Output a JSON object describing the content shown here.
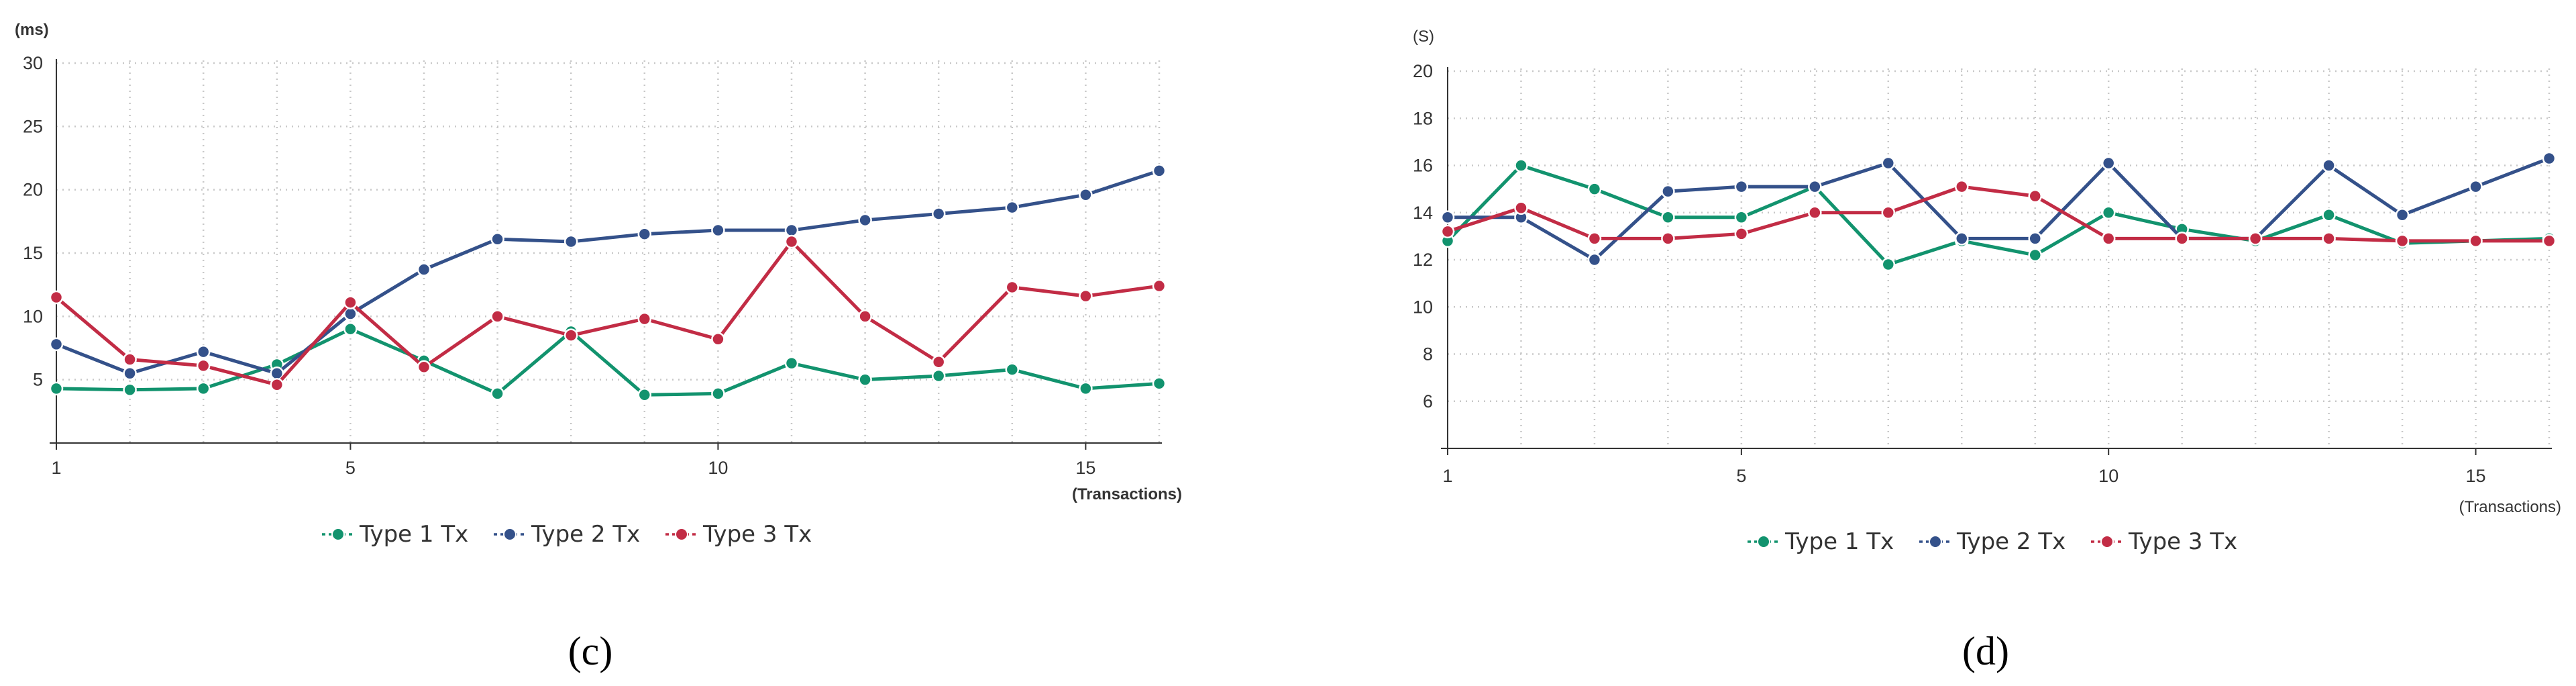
{
  "colors": {
    "series1": "#12936e",
    "series2": "#34518a",
    "series3": "#c22c45",
    "grid": "#c8c8c8",
    "axis": "#333333"
  },
  "chart_data": [
    {
      "panel": "c",
      "type": "line",
      "caption": "(c)",
      "ylabel": "(ms)",
      "xlabel": "(Transactions)",
      "xlim": [
        1,
        16
      ],
      "ylim": [
        0,
        30
      ],
      "xticks": [
        1,
        5,
        10,
        15
      ],
      "yticks": [
        5,
        10,
        15,
        20,
        25,
        30
      ],
      "grid": true,
      "legend_position": "bottom-center",
      "x": [
        1,
        2,
        3,
        4,
        5,
        6,
        7,
        8,
        9,
        10,
        11,
        12,
        13,
        14,
        15,
        16
      ],
      "series": [
        {
          "name": "Type 1 Tx",
          "color_key": "series1",
          "values": [
            4.3,
            4.2,
            4.3,
            6.2,
            9.0,
            6.5,
            3.9,
            8.8,
            3.8,
            3.9,
            6.3,
            5.0,
            5.3,
            5.8,
            4.3,
            4.7
          ]
        },
        {
          "name": "Type 2 Tx",
          "color_key": "series2",
          "values": [
            7.8,
            5.5,
            7.2,
            5.5,
            10.2,
            13.7,
            16.1,
            15.9,
            16.5,
            16.8,
            16.8,
            17.6,
            18.1,
            18.6,
            19.6,
            21.5
          ]
        },
        {
          "name": "Type 3 Tx",
          "color_key": "series3",
          "values": [
            11.5,
            6.6,
            6.1,
            4.6,
            11.1,
            6.0,
            10.0,
            8.5,
            9.8,
            8.2,
            15.9,
            10.0,
            6.4,
            12.3,
            11.6,
            12.4
          ]
        }
      ]
    },
    {
      "panel": "d",
      "type": "line",
      "caption": "(d)",
      "ylabel": "(S)",
      "xlabel": "(Transactions)",
      "xlim": [
        1,
        16
      ],
      "ylim": [
        4,
        20
      ],
      "xticks": [
        1,
        5,
        10,
        15
      ],
      "yticks": [
        6,
        8,
        10,
        12,
        14,
        16,
        18,
        20
      ],
      "grid": true,
      "legend_position": "bottom-center",
      "x": [
        1,
        2,
        3,
        4,
        5,
        6,
        7,
        8,
        9,
        10,
        11,
        12,
        13,
        14,
        15,
        16
      ],
      "series": [
        {
          "name": "Type 1 Tx",
          "color_key": "series1",
          "values": [
            12.8,
            16.0,
            15.0,
            13.8,
            13.8,
            15.1,
            11.8,
            12.8,
            12.2,
            14.0,
            13.3,
            12.8,
            13.9,
            12.7,
            12.8,
            12.9
          ]
        },
        {
          "name": "Type 2 Tx",
          "color_key": "series2",
          "values": [
            13.8,
            13.8,
            12.0,
            14.9,
            15.1,
            15.1,
            16.1,
            12.9,
            12.9,
            16.1,
            12.9,
            12.9,
            16.0,
            13.9,
            15.1,
            16.3
          ]
        },
        {
          "name": "Type 3 Tx",
          "color_key": "series3",
          "values": [
            13.2,
            14.2,
            12.9,
            12.9,
            13.1,
            14.0,
            14.0,
            15.1,
            14.7,
            12.9,
            12.9,
            12.9,
            12.9,
            12.8,
            12.8,
            12.8
          ]
        }
      ]
    }
  ]
}
